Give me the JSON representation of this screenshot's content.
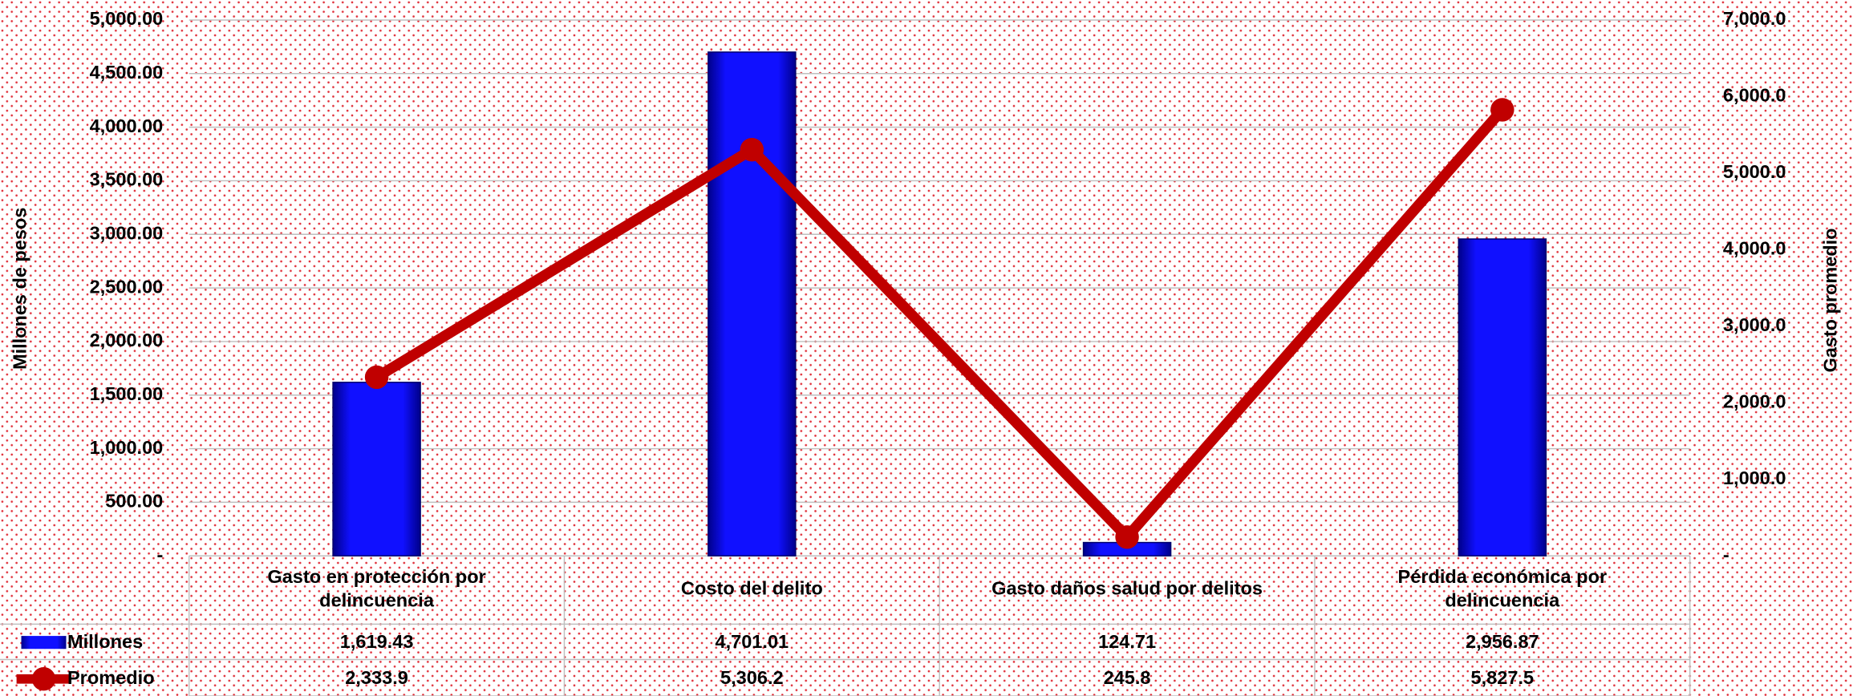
{
  "chart_data": {
    "type": "bar-line",
    "y_label": "Millones de pesos",
    "y2_label": "Gasto promedio",
    "categories": [
      "Gasto en protección por delincuencia",
      "Costo del delito",
      "Gasto daños salud por delitos",
      "Pérdida económica por delincuencia"
    ],
    "series": [
      {
        "name": "Millones",
        "type": "bar",
        "color": "#0a0af0",
        "values": [
          1619.43,
          4701.01,
          124.71,
          2956.87
        ],
        "value_labels": [
          "1,619.43",
          "4,701.01",
          "124.71",
          "2,956.87"
        ]
      },
      {
        "name": "Promedio",
        "type": "line",
        "axis": "y2",
        "color": "#c00000",
        "values": [
          2333.9,
          5306.2,
          245.8,
          5827.5
        ],
        "value_labels": [
          "2,333.9",
          "5,306.2",
          "245.8",
          "5,827.5"
        ]
      }
    ],
    "ylim": [
      0,
      5000
    ],
    "yticks": [
      {
        "value": 0,
        "label": "-"
      },
      {
        "value": 500,
        "label": "500.00"
      },
      {
        "value": 1000,
        "label": "1,000.00"
      },
      {
        "value": 1500,
        "label": "1,500.00"
      },
      {
        "value": 2000,
        "label": "2,000.00"
      },
      {
        "value": 2500,
        "label": "2,500.00"
      },
      {
        "value": 3000,
        "label": "3,000.00"
      },
      {
        "value": 3500,
        "label": "3,500.00"
      },
      {
        "value": 4000,
        "label": "4,000.00"
      },
      {
        "value": 4500,
        "label": "4,500.00"
      },
      {
        "value": 5000,
        "label": "5,000.00"
      }
    ],
    "y2lim": [
      0,
      7000
    ],
    "y2ticks": [
      {
        "value": 0,
        "label": "-"
      },
      {
        "value": 1000,
        "label": "1,000.0"
      },
      {
        "value": 2000,
        "label": "2,000.0"
      },
      {
        "value": 3000,
        "label": "3,000.0"
      },
      {
        "value": 4000,
        "label": "4,000.0"
      },
      {
        "value": 5000,
        "label": "5,000.0"
      },
      {
        "value": 6000,
        "label": "6,000.0"
      },
      {
        "value": 7000,
        "label": "7,000.0"
      }
    ],
    "grid": true
  }
}
